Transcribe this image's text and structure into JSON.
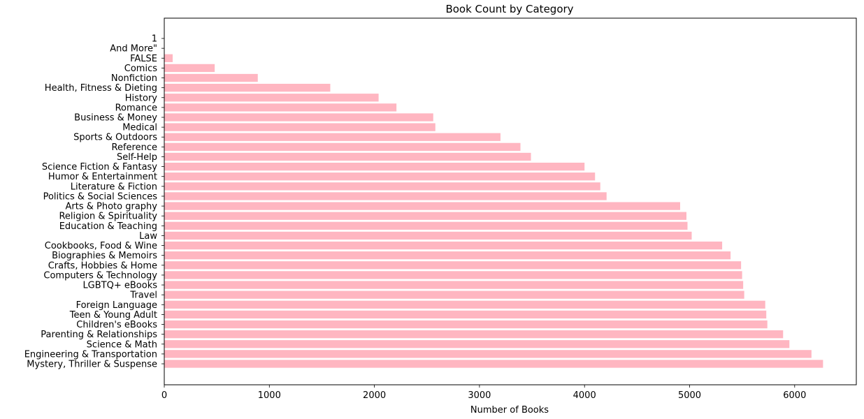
{
  "chart_data": {
    "type": "bar",
    "orientation": "horizontal",
    "title": "Book Count by Category",
    "xlabel": "Number of Books",
    "ylabel": "",
    "xlim": [
      0,
      6600
    ],
    "xticks": [
      0,
      1000,
      2000,
      3000,
      4000,
      5000,
      6000
    ],
    "grid": false,
    "bar_color": "#ffb6c1",
    "categories": [
      "Mystery, Thriller & Suspense",
      "Engineering & Transportation",
      "Science & Math",
      "Parenting & Relationships",
      "Children's eBooks",
      "Teen & Young Adult",
      "Foreign Language",
      "Travel",
      "LGBTQ+ eBooks",
      "Computers & Technology",
      "Crafts, Hobbies & Home",
      "Biographies & Memoirs",
      "Cookbooks, Food & Wine",
      "Law",
      "Education & Teaching",
      "Religion & Spirituality",
      "Arts & Photo graphy",
      "Politics & Social Sciences",
      "Literature & Fiction",
      "Humor & Entertainment",
      "Science Fiction & Fantasy",
      "Self-Help",
      "Reference",
      "Sports & Outdoors",
      "Medical",
      "Business & Money",
      "Romance",
      "History",
      "Health, Fitness & Dieting",
      "Nonfiction",
      "Comics",
      "FALSE",
      "And More\"",
      "1"
    ],
    "values": [
      6270,
      6160,
      5950,
      5890,
      5740,
      5730,
      5720,
      5520,
      5510,
      5500,
      5490,
      5390,
      5310,
      5020,
      4980,
      4970,
      4910,
      4210,
      4150,
      4100,
      4000,
      3490,
      3390,
      3200,
      2580,
      2560,
      2210,
      2040,
      1580,
      890,
      480,
      80,
      1,
      1
    ]
  }
}
